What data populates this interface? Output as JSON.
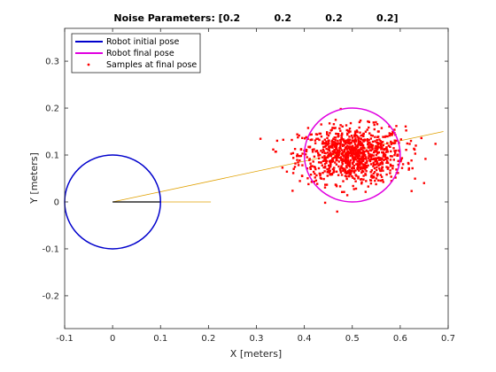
{
  "chart_data": {
    "type": "scatter",
    "title": "Noise Parameters: [0.2          0.2          0.2          0.2]",
    "xlabel": "X [meters]",
    "ylabel": "Y [meters]",
    "xlim": [
      -0.1,
      0.7
    ],
    "ylim": [
      -0.27,
      0.37
    ],
    "xticks": [
      -0.1,
      0,
      0.1,
      0.2,
      0.3,
      0.4,
      0.5,
      0.6,
      0.7
    ],
    "xtick_labels": [
      "-0.1",
      "0",
      "0.1",
      "0.2",
      "0.3",
      "0.4",
      "0.5",
      "0.6",
      "0.7"
    ],
    "yticks": [
      -0.2,
      -0.1,
      0,
      0.1,
      0.2,
      0.3
    ],
    "ytick_labels": [
      "-0.2",
      "-0.1",
      "0",
      "0.1",
      "0.2",
      "0.3"
    ],
    "grid": false,
    "legend_position": "top-left",
    "colors": {
      "initial": "#0000cc",
      "final": "#e000e0",
      "samples": "#ff0000",
      "heading": "#e0a000",
      "heading_initial_dir": "#000000"
    },
    "series": [
      {
        "name": "Robot initial pose",
        "kind": "circle",
        "center": [
          0,
          0
        ],
        "radius": 0.1
      },
      {
        "name": "Robot final pose",
        "kind": "circle",
        "center": [
          0.5,
          0.1
        ],
        "radius": 0.1
      },
      {
        "name": "Samples at final pose",
        "kind": "scatter",
        "count": 1000,
        "mean": [
          0.5,
          0.1
        ],
        "std": [
          0.055,
          0.03
        ]
      }
    ],
    "heading_lines": [
      {
        "from": [
          0,
          0
        ],
        "to": [
          0.69,
          0.15
        ]
      },
      {
        "from": [
          0,
          0
        ],
        "to": [
          0.205,
          0
        ]
      },
      {
        "from": [
          0,
          0
        ],
        "to": [
          0.1,
          0
        ]
      }
    ]
  }
}
